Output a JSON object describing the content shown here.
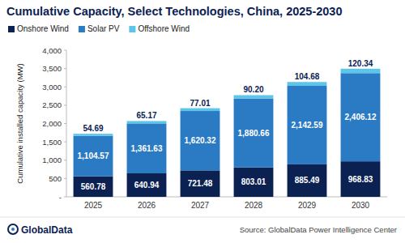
{
  "chart_data": {
    "type": "bar",
    "title": "Cumulative Capacity, Select Technologies, China, 2025-2030",
    "y_label": "Cumulative installed capacity (MW)",
    "source": "Source: GlobalData Power Intelligence Center",
    "logo": "GlobalData",
    "categories": [
      "2025",
      "2026",
      "2027",
      "2028",
      "2029",
      "2030"
    ],
    "series": [
      {
        "name": "Onshore Wind",
        "color": "#0b2152",
        "values": [
          560.78,
          640.94,
          721.48,
          803.01,
          885.49,
          968.83
        ]
      },
      {
        "name": "Solar PV",
        "color": "#2a7ac4",
        "values": [
          1104.57,
          1361.63,
          1620.32,
          1880.66,
          2142.59,
          2406.12
        ],
        "value_labels": [
          "1,104.57",
          "1,361.63",
          "1,620.32",
          "1,880.66",
          "2,142.59",
          "2,406.12"
        ]
      },
      {
        "name": "Offshore Wind",
        "color": "#5cc5ea",
        "values": [
          54.69,
          65.17,
          77.01,
          90.2,
          104.68,
          120.34
        ],
        "value_labels": [
          "54.69",
          "65.17",
          "77.01",
          "90.20",
          "104.68",
          "120.34"
        ]
      }
    ],
    "stacked": true,
    "data_labels": true,
    "grid": false,
    "legend": "top-left",
    "ylim": [
      0,
      4000
    ],
    "yticks": [
      {
        "value": 0,
        "label": "-"
      },
      500,
      {
        "value": 1000,
        "label": "1,000"
      },
      {
        "value": 1500,
        "label": "1,500"
      },
      {
        "value": 2000,
        "label": "2,000"
      },
      {
        "value": 2500,
        "label": "2,500"
      },
      {
        "value": 3000,
        "label": "3,000"
      },
      {
        "value": 3500,
        "label": "3,500"
      },
      {
        "value": 4000,
        "label": "4,000"
      }
    ]
  }
}
